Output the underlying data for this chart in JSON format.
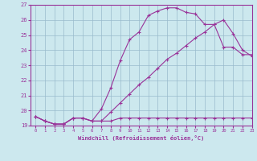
{
  "xlabel": "Windchill (Refroidissement éolien,°C)",
  "x_values": [
    0,
    1,
    2,
    3,
    4,
    5,
    6,
    7,
    8,
    9,
    10,
    11,
    12,
    13,
    14,
    15,
    16,
    17,
    18,
    19,
    20,
    21,
    22,
    23
  ],
  "line1": [
    19.6,
    19.3,
    19.1,
    19.1,
    19.5,
    19.5,
    19.3,
    19.3,
    19.3,
    19.5,
    19.5,
    19.5,
    19.5,
    19.5,
    19.5,
    19.5,
    19.5,
    19.5,
    19.5,
    19.5,
    19.5,
    19.5,
    19.5,
    19.5
  ],
  "line2": [
    19.6,
    19.3,
    19.1,
    19.1,
    19.5,
    19.5,
    19.3,
    20.1,
    21.5,
    23.3,
    24.7,
    25.2,
    26.3,
    26.6,
    26.8,
    26.8,
    26.5,
    26.4,
    25.7,
    25.7,
    24.2,
    24.2,
    23.7,
    23.7
  ],
  "line3": [
    19.6,
    19.3,
    19.1,
    19.1,
    19.5,
    19.5,
    19.3,
    19.3,
    19.9,
    20.5,
    21.1,
    21.7,
    22.2,
    22.8,
    23.4,
    23.8,
    24.3,
    24.8,
    25.2,
    25.7,
    26.0,
    25.1,
    24.0,
    23.6
  ],
  "line_color": "#993399",
  "bg_color": "#cce8ee",
  "grid_color": "#99bbcc",
  "ylim": [
    19,
    27
  ],
  "xlim": [
    -0.5,
    23
  ],
  "yticks": [
    19,
    20,
    21,
    22,
    23,
    24,
    25,
    26,
    27
  ],
  "xticks": [
    0,
    1,
    2,
    3,
    4,
    5,
    6,
    7,
    8,
    9,
    10,
    11,
    12,
    13,
    14,
    15,
    16,
    17,
    18,
    19,
    20,
    21,
    22,
    23
  ]
}
